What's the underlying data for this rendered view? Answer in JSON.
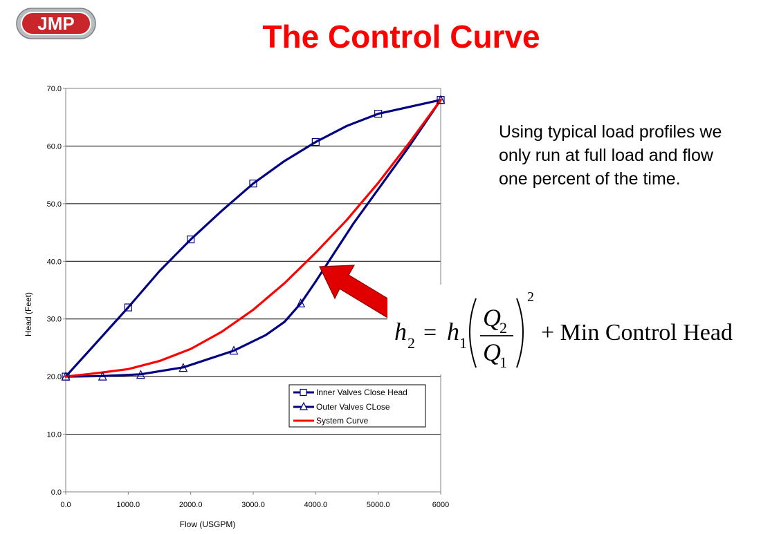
{
  "logo": {
    "text": "JMP"
  },
  "slide": {
    "title": "The Control Curve",
    "description": "Using typical load profiles we only run at full load and flow one percent of the time."
  },
  "formula": {
    "lhs_var": "h",
    "lhs_sub": "2",
    "equals": "=",
    "rhs_var": "h",
    "rhs_sub": "1",
    "num_var": "Q",
    "num_sub": "2",
    "den_var": "Q",
    "den_sub": "1",
    "exponent": "2",
    "tail": "+ Min Control Head"
  },
  "colors": {
    "title": "#ff0000",
    "navy": "#000080",
    "system": "#ff0000",
    "arrow": "#e00000"
  },
  "chart_data": {
    "type": "line",
    "title": "",
    "xlabel": "Flow (USGPM)",
    "ylabel": "Head (Feet)",
    "xlim": [
      0,
      6000
    ],
    "ylim": [
      0,
      70
    ],
    "grid": "horizontal",
    "legend_position": "lower-right inside plot",
    "x_ticks": [
      0,
      1000,
      2000,
      3000,
      4000,
      5000,
      6000
    ],
    "x_tick_labels": [
      "0.0",
      "1000.0",
      "2000.0",
      "3000.0",
      "4000.0",
      "5000.0",
      "6000"
    ],
    "y_ticks": [
      0,
      10,
      20,
      30,
      40,
      50,
      60,
      70
    ],
    "y_tick_labels": [
      "0.0",
      "10.0",
      "20.0",
      "30.0",
      "40.0",
      "50.0",
      "60.0",
      "70.0"
    ],
    "series": [
      {
        "name": "Inner Valves Close Head",
        "marker": "square",
        "color": "#000080",
        "x": [
          0,
          1000,
          2000,
          3000,
          4000,
          5000,
          6000
        ],
        "y": [
          20,
          32,
          43.8,
          53.5,
          60.7,
          65.6,
          68
        ],
        "curve_x": [
          0,
          500,
          1000,
          1500,
          2000,
          2500,
          3000,
          3500,
          4000,
          4500,
          5000,
          5500,
          6000
        ],
        "curve_y": [
          20,
          26,
          32,
          38.3,
          43.8,
          48.8,
          53.5,
          57.4,
          60.7,
          63.5,
          65.6,
          66.8,
          68
        ]
      },
      {
        "name": "Outer Valves CLose",
        "marker": "triangle",
        "color": "#000080",
        "x": [
          0,
          590,
          1200,
          1880,
          2690,
          3760,
          6000
        ],
        "y": [
          20,
          20,
          20.3,
          21.5,
          24.5,
          32.7,
          68
        ],
        "curve_x": [
          0,
          590,
          1200,
          1880,
          2690,
          3200,
          3500,
          3760,
          4000,
          4300,
          4600,
          5000,
          5500,
          6000
        ],
        "curve_y": [
          20,
          20.1,
          20.4,
          21.6,
          24.5,
          27.2,
          29.5,
          32.7,
          36.5,
          41.5,
          46.5,
          52.5,
          60,
          68
        ]
      },
      {
        "name": "System Curve",
        "marker": "none",
        "color": "#ff0000",
        "curve_x": [
          0,
          500,
          1000,
          1500,
          2000,
          2500,
          3000,
          3500,
          4000,
          4500,
          5000,
          5500,
          6000
        ],
        "curve_y": [
          20,
          20.6,
          21.3,
          22.7,
          24.8,
          27.8,
          31.6,
          36.2,
          41.5,
          47.2,
          53.6,
          60.6,
          68
        ]
      }
    ]
  }
}
